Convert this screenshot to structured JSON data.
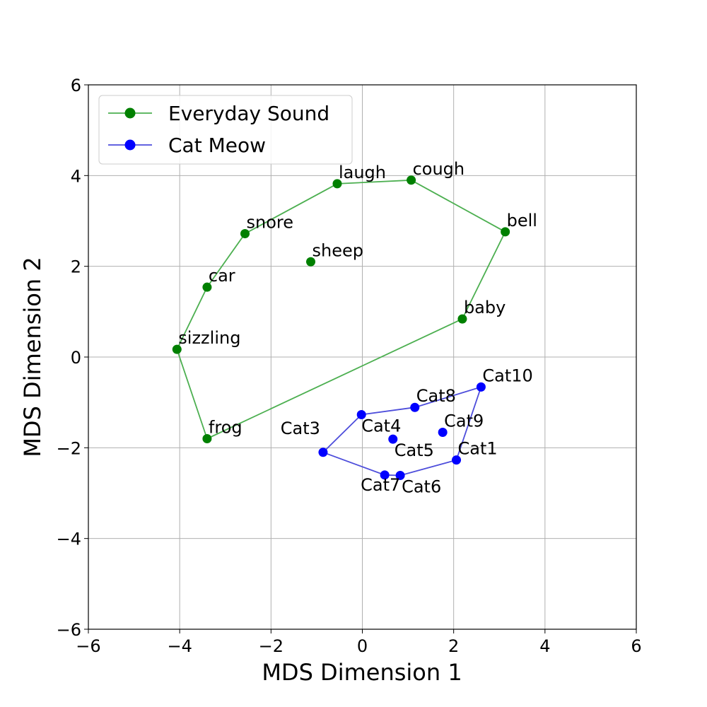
{
  "chart_data": {
    "type": "scatter",
    "title": "",
    "xlabel": "MDS Dimension 1",
    "ylabel": "MDS Dimension 2",
    "xlim": [
      -6,
      6
    ],
    "ylim": [
      -6,
      6
    ],
    "xticks": [
      -6,
      -4,
      -2,
      0,
      2,
      4,
      6
    ],
    "yticks": [
      -6,
      -4,
      -2,
      0,
      2,
      4,
      6
    ],
    "grid": true,
    "legend_position": "upper-left",
    "series": [
      {
        "name": "Everyday Sound",
        "color": "#008000",
        "line_color": "#4caf50",
        "polygon_order": [
          "frog",
          "baby",
          "bell",
          "cough",
          "laugh",
          "snore",
          "car",
          "sizzling",
          "frog"
        ],
        "points": [
          {
            "label": "laugh",
            "x": -0.55,
            "y": 3.82
          },
          {
            "label": "cough",
            "x": 1.07,
            "y": 3.9
          },
          {
            "label": "bell",
            "x": 3.13,
            "y": 2.76
          },
          {
            "label": "snore",
            "x": -2.57,
            "y": 2.72
          },
          {
            "label": "sheep",
            "x": -1.13,
            "y": 2.1
          },
          {
            "label": "car",
            "x": -3.4,
            "y": 1.54
          },
          {
            "label": "baby",
            "x": 2.19,
            "y": 0.84
          },
          {
            "label": "sizzling",
            "x": -4.06,
            "y": 0.17
          },
          {
            "label": "frog",
            "x": -3.4,
            "y": -1.8
          }
        ]
      },
      {
        "name": "Cat Meow",
        "color": "#0000ff",
        "line_color": "#4d4ddb",
        "polygon_order": [
          "Cat3",
          "Cat4",
          "Cat8",
          "Cat10",
          "Cat1",
          "Cat6",
          "Cat7",
          "Cat3"
        ],
        "points": [
          {
            "label": "Cat10",
            "x": 2.6,
            "y": -0.66
          },
          {
            "label": "Cat8",
            "x": 1.15,
            "y": -1.11
          },
          {
            "label": "Cat4",
            "x": -0.02,
            "y": -1.27
          },
          {
            "label": "Cat9",
            "x": 1.76,
            "y": -1.66
          },
          {
            "label": "Cat5",
            "x": 0.67,
            "y": -1.81
          },
          {
            "label": "Cat3",
            "x": -0.86,
            "y": -2.1
          },
          {
            "label": "Cat1",
            "x": 2.06,
            "y": -2.27
          },
          {
            "label": "Cat7",
            "x": 0.49,
            "y": -2.6
          },
          {
            "label": "Cat6",
            "x": 0.83,
            "y": -2.61
          }
        ]
      }
    ]
  }
}
